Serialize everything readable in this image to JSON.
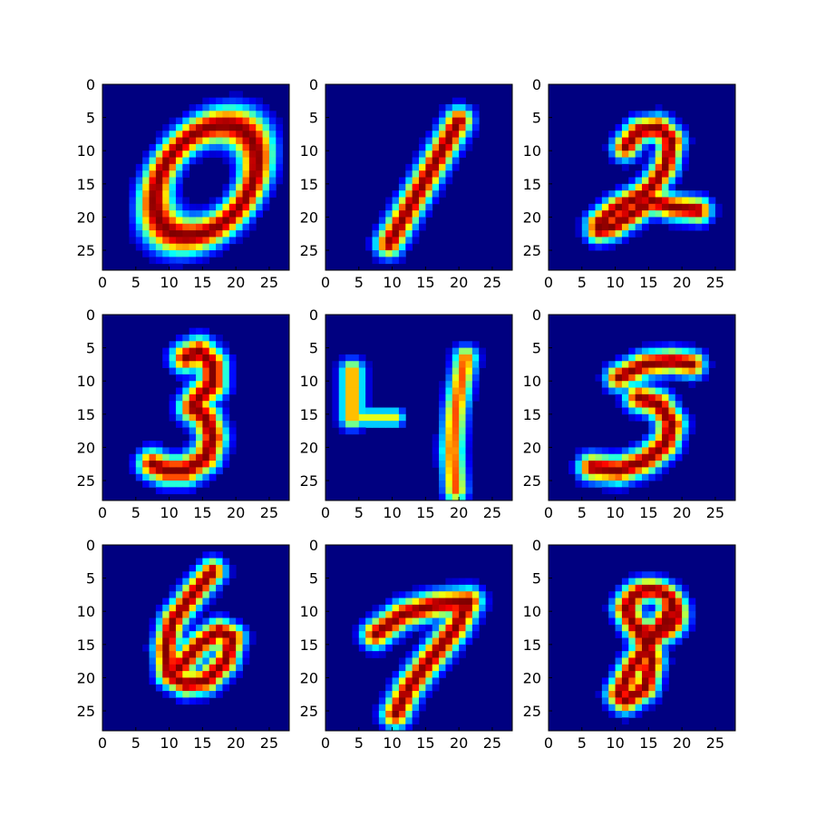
{
  "chart_data": {
    "type": "heatmap",
    "colormap": "jet",
    "grid": false,
    "colors": {
      "background": "#000080",
      "axes_edge": "#000000",
      "figure_bg": "#ffffff"
    },
    "subplots": [
      {
        "digit": "0",
        "row": 0,
        "col": 0,
        "xlim": [
          0,
          27
        ],
        "ylim": [
          27,
          0
        ],
        "xticks": [
          "0",
          "5",
          "10",
          "15",
          "20",
          "25"
        ],
        "yticks": [
          "0",
          "5",
          "10",
          "15",
          "20",
          "25"
        ],
        "strokes": [
          {
            "shape": "ellipse",
            "cx": 15,
            "cy": 14,
            "rx": 6.4,
            "ry": 9.4,
            "rot": 38,
            "w": 3.0
          }
        ]
      },
      {
        "digit": "1",
        "row": 0,
        "col": 1,
        "xlim": [
          0,
          27
        ],
        "ylim": [
          27,
          0
        ],
        "xticks": [
          "0",
          "5",
          "10",
          "15",
          "20",
          "25"
        ],
        "yticks": [
          "0",
          "5",
          "10",
          "15",
          "20",
          "25"
        ],
        "strokes": [
          {
            "shape": "poly",
            "pts": [
              [
                19.5,
                5
              ],
              [
                9,
                23.5
              ]
            ],
            "w": 2.8
          }
        ]
      },
      {
        "digit": "2",
        "row": 0,
        "col": 2,
        "xlim": [
          0,
          27
        ],
        "ylim": [
          27,
          0
        ],
        "xticks": [
          "0",
          "5",
          "10",
          "15",
          "20",
          "25"
        ],
        "yticks": [
          "0",
          "5",
          "10",
          "15",
          "20",
          "25"
        ],
        "strokes": [
          {
            "shape": "poly",
            "pts": [
              [
                11,
                9
              ],
              [
                13,
                6.5
              ],
              [
                16,
                6
              ],
              [
                18,
                8
              ],
              [
                17,
                12
              ],
              [
                15,
                15
              ],
              [
                13,
                16.5
              ],
              [
                10,
                18
              ],
              [
                7,
                20.5
              ],
              [
                7,
                21.5
              ],
              [
                9,
                21
              ],
              [
                12,
                19
              ],
              [
                15,
                17
              ],
              [
                18,
                18
              ],
              [
                22,
                18.5
              ]
            ],
            "w": 2.6
          }
        ]
      },
      {
        "digit": "3",
        "row": 1,
        "col": 0,
        "xlim": [
          0,
          27
        ],
        "ylim": [
          27,
          0
        ],
        "xticks": [
          "0",
          "5",
          "10",
          "15",
          "20",
          "25"
        ],
        "yticks": [
          "0",
          "5",
          "10",
          "15",
          "20",
          "25"
        ],
        "strokes": [
          {
            "shape": "poly",
            "pts": [
              [
                12,
                6
              ],
              [
                14,
                5
              ],
              [
                16,
                7
              ],
              [
                16,
                10
              ],
              [
                14,
                12
              ],
              [
                13,
                13.5
              ],
              [
                15,
                15
              ],
              [
                16,
                18
              ],
              [
                15,
                21
              ],
              [
                12,
                23
              ],
              [
                9,
                23
              ],
              [
                7,
                22
              ]
            ],
            "w": 3.0
          }
        ]
      },
      {
        "digit": "4",
        "row": 1,
        "col": 1,
        "xlim": [
          0,
          27
        ],
        "ylim": [
          27,
          0
        ],
        "xticks": [
          "0",
          "5",
          "10",
          "15",
          "20",
          "25"
        ],
        "yticks": [
          "0",
          "5",
          "10",
          "15",
          "20",
          "25"
        ],
        "strokes": [
          {
            "shape": "poly",
            "pts": [
              [
                3.5,
                8
              ],
              [
                3.5,
                15
              ]
            ],
            "w": 2.4,
            "peak": 0.75
          },
          {
            "shape": "poly",
            "pts": [
              [
                4.5,
                15
              ],
              [
                10,
                15
              ]
            ],
            "w": 1.8,
            "peak": 0.6
          },
          {
            "shape": "poly",
            "pts": [
              [
                20.5,
                6
              ],
              [
                19,
                14
              ],
              [
                18.5,
                20
              ],
              [
                19,
                26
              ]
            ],
            "w": 2.4,
            "peak": 0.8
          }
        ]
      },
      {
        "digit": "5",
        "row": 1,
        "col": 2,
        "xlim": [
          0,
          27
        ],
        "ylim": [
          27,
          0
        ],
        "xticks": [
          "0",
          "5",
          "10",
          "15",
          "20",
          "25"
        ],
        "yticks": [
          "0",
          "5",
          "10",
          "15",
          "20",
          "25"
        ],
        "strokes": [
          {
            "shape": "poly",
            "pts": [
              [
                10,
                9
              ],
              [
                14,
                7
              ],
              [
                18,
                6.5
              ],
              [
                21,
                7
              ]
            ],
            "w": 2.6
          },
          {
            "shape": "poly",
            "pts": [
              [
                13,
                12
              ],
              [
                16,
                13
              ],
              [
                18,
                16
              ],
              [
                17,
                19
              ],
              [
                14,
                21.5
              ],
              [
                10,
                23
              ],
              [
                6,
                22.5
              ]
            ],
            "w": 2.8
          }
        ]
      },
      {
        "digit": "6",
        "row": 2,
        "col": 0,
        "xlim": [
          0,
          27
        ],
        "ylim": [
          27,
          0
        ],
        "xticks": [
          "0",
          "5",
          "10",
          "15",
          "20",
          "25"
        ],
        "yticks": [
          "0",
          "5",
          "10",
          "15",
          "20",
          "25"
        ],
        "strokes": [
          {
            "shape": "poly",
            "pts": [
              [
                16,
                3.5
              ],
              [
                13,
                7
              ],
              [
                10,
                11
              ],
              [
                9,
                15
              ],
              [
                9.5,
                19
              ],
              [
                12,
                20.5
              ],
              [
                15,
                20
              ],
              [
                18,
                17
              ],
              [
                19,
                13.5
              ],
              [
                17,
                12.5
              ],
              [
                14,
                14.5
              ],
              [
                11,
                18
              ]
            ],
            "w": 2.6
          }
        ]
      },
      {
        "digit": "7",
        "row": 2,
        "col": 1,
        "xlim": [
          0,
          27
        ],
        "ylim": [
          27,
          0
        ],
        "xticks": [
          "0",
          "5",
          "10",
          "15",
          "20",
          "25"
        ],
        "yticks": [
          "0",
          "5",
          "10",
          "15",
          "20",
          "25"
        ],
        "strokes": [
          {
            "shape": "poly",
            "pts": [
              [
                7,
                13
              ],
              [
                11,
                10
              ],
              [
                16,
                8.5
              ],
              [
                21,
                8
              ],
              [
                19,
                12
              ],
              [
                15,
                17
              ],
              [
                12,
                21
              ],
              [
                10,
                25
              ]
            ],
            "w": 2.8
          }
        ]
      },
      {
        "digit": "8",
        "row": 2,
        "col": 2,
        "xlim": [
          0,
          27
        ],
        "ylim": [
          27,
          0
        ],
        "xticks": [
          "0",
          "5",
          "10",
          "15",
          "20",
          "25"
        ],
        "yticks": [
          "0",
          "5",
          "10",
          "15",
          "20",
          "25"
        ],
        "strokes": [
          {
            "shape": "ellipse",
            "cx": 15,
            "cy": 9.5,
            "rx": 3.6,
            "ry": 3.2,
            "rot": 20,
            "w": 2.4
          },
          {
            "shape": "poly",
            "pts": [
              [
                18,
                9
              ],
              [
                15,
                14
              ],
              [
                12,
                18
              ],
              [
                10,
                22
              ],
              [
                11,
                23
              ],
              [
                14,
                21
              ],
              [
                15,
                17
              ],
              [
                14,
                14
              ],
              [
                12,
                11
              ],
              [
                11,
                9
              ]
            ],
            "w": 2.6
          }
        ]
      }
    ]
  }
}
